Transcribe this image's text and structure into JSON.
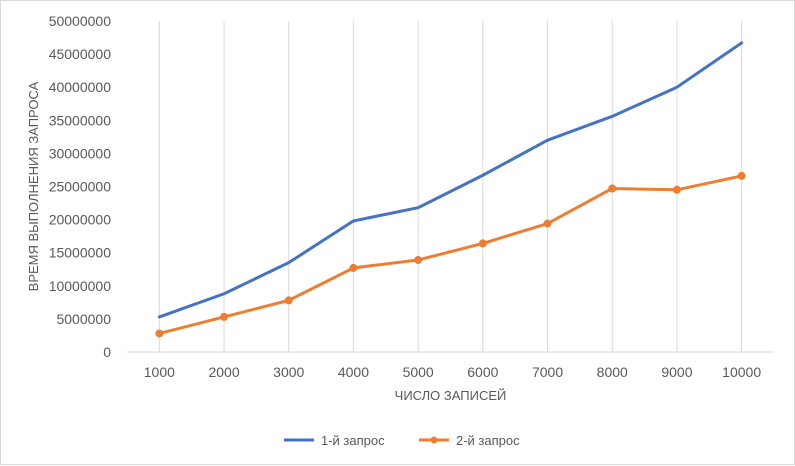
{
  "chart_data": {
    "type": "line",
    "title": "",
    "xlabel": "ЧИСЛО ЗАПИСЕЙ",
    "ylabel": "ВРЕМЯ ВЫПОЛНЕНИЯ ЗАПРОСА",
    "categories": [
      "1000",
      "2000",
      "3000",
      "4000",
      "5000",
      "6000",
      "7000",
      "8000",
      "9000",
      "10000"
    ],
    "ylim": [
      0,
      50000000
    ],
    "yticks": [
      "0",
      "5000000",
      "10000000",
      "15000000",
      "20000000",
      "25000000",
      "30000000",
      "35000000",
      "40000000",
      "45000000",
      "50000000"
    ],
    "grid": "vertical",
    "legend": "bottom",
    "series": [
      {
        "name": "1-й запрос",
        "color": "#4472c4",
        "markers": false,
        "values": [
          5300000,
          8800000,
          13500000,
          19800000,
          21800000,
          26700000,
          32000000,
          35600000,
          40000000,
          46700000
        ]
      },
      {
        "name": "2-й запрос",
        "color": "#ed7d31",
        "markers": true,
        "values": [
          2800000,
          5300000,
          7800000,
          12700000,
          13900000,
          16400000,
          19400000,
          24700000,
          24500000,
          26600000
        ]
      }
    ]
  }
}
